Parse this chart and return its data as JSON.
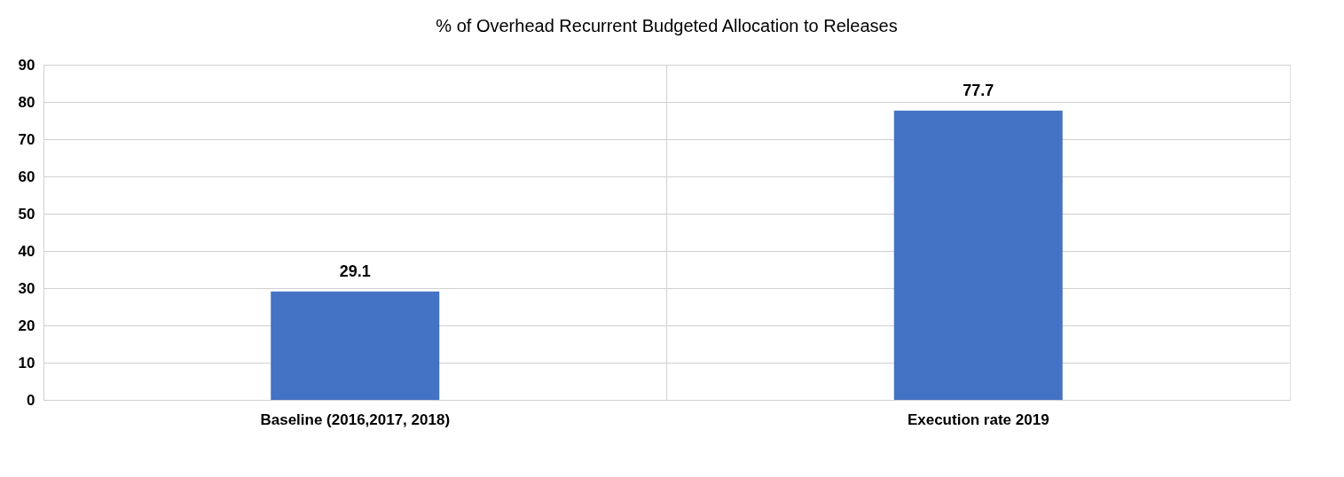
{
  "chart_data": {
    "type": "bar",
    "title": "% of Overhead Recurrent Budgeted Allocation to Releases",
    "categories": [
      "Baseline (2016,2017, 2018)",
      "Execution rate 2019"
    ],
    "values": [
      29.1,
      77.7
    ],
    "color": "#4472c4",
    "ylim": [
      0,
      90
    ],
    "yticks": [
      0,
      10,
      20,
      30,
      40,
      50,
      60,
      70,
      80,
      90
    ],
    "grid": true,
    "data_labels": true
  }
}
